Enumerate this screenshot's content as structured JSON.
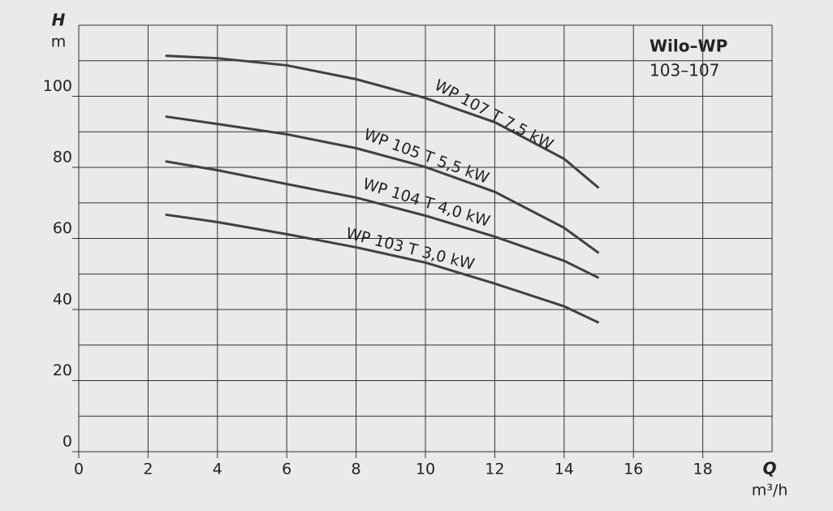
{
  "chart_data": {
    "type": "line",
    "title": "Wilo–WP",
    "subtitle": "103–107",
    "y_label": "H",
    "y_unit": "m",
    "x_label": "Q",
    "x_unit": "m³/h",
    "xlim": [
      0,
      20
    ],
    "ylim": [
      0,
      120
    ],
    "xticks": [
      0,
      2,
      4,
      6,
      8,
      10,
      12,
      14,
      16,
      18
    ],
    "yticks": [
      0,
      20,
      40,
      60,
      80,
      100
    ],
    "x_grid": [
      0,
      2,
      4,
      6,
      8,
      10,
      12,
      14,
      16,
      18,
      20
    ],
    "y_grid": [
      0,
      10,
      20,
      30,
      40,
      50,
      60,
      70,
      80,
      90,
      100,
      110,
      120
    ],
    "grid": true,
    "series": [
      {
        "name": "WP 107 T 7,5 kW",
        "color": "#404040",
        "x": [
          2.5,
          4,
          6,
          8,
          10,
          12,
          14,
          15
        ],
        "values": [
          111.4,
          110.7,
          108.7,
          104.8,
          99.5,
          92.7,
          82.4,
          74.2
        ]
      },
      {
        "name": "WP 105 T 5,5 kW",
        "color": "#404040",
        "x": [
          2.5,
          4,
          6,
          8,
          10,
          12,
          14,
          15
        ],
        "values": [
          94.3,
          92.2,
          89.3,
          85.4,
          80.1,
          73.1,
          63.0,
          55.9
        ]
      },
      {
        "name": "WP 104 T 4,0 kW",
        "color": "#404040",
        "x": [
          2.5,
          4,
          6,
          8,
          10,
          12,
          14,
          15
        ],
        "values": [
          81.7,
          79.2,
          75.3,
          71.5,
          66.4,
          60.5,
          53.7,
          48.9
        ]
      },
      {
        "name": "WP 103 T 3,0 kW",
        "color": "#404040",
        "x": [
          2.5,
          4,
          6,
          8,
          10,
          12,
          14,
          15
        ],
        "values": [
          66.7,
          64.6,
          61.2,
          57.5,
          53.2,
          47.3,
          40.9,
          36.3
        ]
      }
    ]
  }
}
